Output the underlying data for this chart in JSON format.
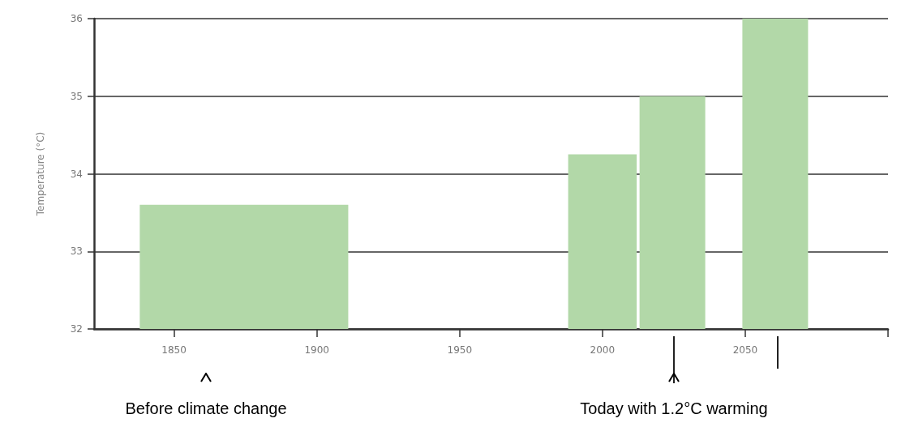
{
  "chart_data": {
    "type": "histogram",
    "ylabel": "Temperature (°C)",
    "bins": [
      1838,
      1911,
      1988,
      2012,
      2013,
      2036,
      2049,
      2072
    ],
    "values": [
      33.6,
      null,
      34.25,
      null,
      35,
      null,
      36
    ],
    "color": "#b2d8a8",
    "xlim": [
      1822,
      2100
    ],
    "xticks": [
      1850,
      1900,
      1950,
      2000,
      2050,
      {
        "value": 2100,
        "label": null
      }
    ],
    "ylim": [
      32,
      36
    ],
    "yticks": [
      32,
      33,
      34,
      35,
      36
    ],
    "grid": "y",
    "annotations": [
      "Before climate change",
      "Today with 1.2°C warming"
    ]
  }
}
